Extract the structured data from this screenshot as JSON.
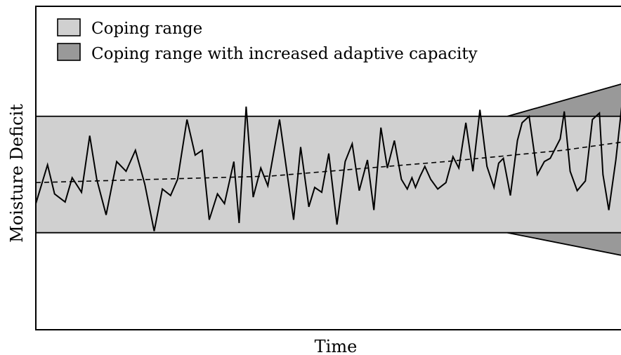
{
  "chart_data": {
    "type": "line",
    "xlabel": "Time",
    "ylabel": "Moisture Deficit",
    "legend": {
      "placement": "top-left",
      "entries": [
        {
          "label": "Coping range",
          "color": "#d0d0d0"
        },
        {
          "label": "Coping range with increased adaptive capacity",
          "color": "#999999"
        }
      ]
    },
    "colors": {
      "coping_range": "#d0d0d0",
      "increased_capacity": "#999999",
      "line": "#000000"
    },
    "xlim": [
      0,
      100
    ],
    "ylim": [
      0,
      100
    ],
    "coping_range": {
      "lower": 30,
      "upper": 66
    },
    "increased_capacity_range": {
      "start_x": 80.5,
      "end_x": 100,
      "lower_end": 23,
      "upper_end": 76
    },
    "trend": {
      "style": "dashed",
      "points": [
        [
          0,
          45.5
        ],
        [
          40,
          47.5
        ],
        [
          70,
          52
        ],
        [
          90,
          55.5
        ],
        [
          100,
          58
        ]
      ]
    },
    "series": [
      {
        "x": [
          0,
          2,
          3.2,
          5,
          6.2,
          7.8,
          9.2,
          10.4,
          12,
          13.8,
          15.4,
          17,
          18.6,
          20.2,
          21.6,
          23,
          24.2,
          25.8,
          27.2,
          28.4,
          29.6,
          31,
          32.2,
          33.8,
          34.7,
          35.9,
          37.1,
          38.4,
          39.6,
          41.6,
          42.8,
          44,
          45.2,
          46.6,
          47.6,
          48.8,
          50,
          51.4,
          52.8,
          54,
          55.2,
          56.6,
          57.7,
          58.9,
          60,
          61.2,
          62.4,
          63.4,
          64.2,
          64.8,
          65.6,
          66.4,
          67.4,
          68.6,
          70,
          71.2,
          72.2,
          73.4,
          74.6,
          75.8,
          77,
          78.2,
          79,
          79.8,
          81,
          82.2,
          83,
          84.2,
          85.6,
          86.8,
          87.8,
          89.5,
          90.2,
          91.2,
          92.4,
          93.8,
          95,
          96.2,
          96.8,
          97.8,
          99,
          100
        ],
        "y": [
          39,
          51,
          42,
          39.5,
          47,
          42.5,
          60,
          46.5,
          35.5,
          52,
          49,
          55.5,
          45,
          30.5,
          43.5,
          41.5,
          46.5,
          65,
          54,
          55.5,
          34,
          42,
          39,
          52,
          33,
          69,
          41,
          50,
          44.5,
          65,
          49.5,
          34,
          56.5,
          38,
          44,
          42.5,
          54.5,
          32.5,
          52,
          57.5,
          43,
          52.5,
          37,
          62.5,
          50,
          58.5,
          46.5,
          43.5,
          47,
          44,
          47.5,
          50.5,
          46.5,
          43.5,
          45.5,
          53.5,
          50,
          64,
          49,
          68,
          50.5,
          44,
          51.5,
          53,
          41.5,
          58.5,
          64,
          66,
          48,
          52,
          53,
          59,
          67.5,
          49,
          43,
          46,
          65,
          67,
          48,
          37,
          52.5,
          69
        ]
      }
    ]
  }
}
